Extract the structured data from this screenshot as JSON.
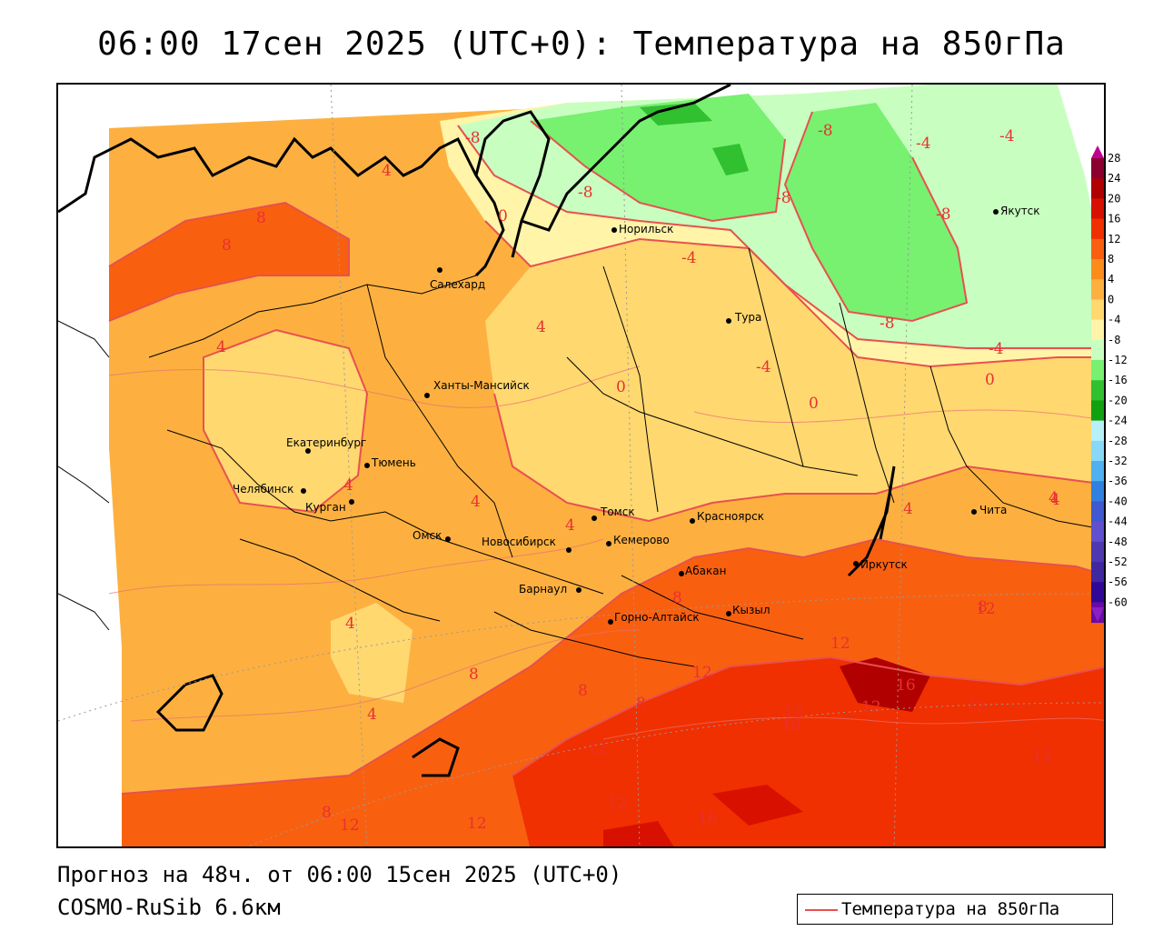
{
  "title": "06:00 17сен 2025 (UTC+0): Температура на 850гПа",
  "footer": {
    "forecast": "Прогноз на 48ч. от 06:00 15сен 2025 (UTC+0)",
    "model": "COSMO-RuSib 6.6км"
  },
  "legend": {
    "label": "Температура на 850гПа",
    "line_color": "#e85050"
  },
  "colorbar": {
    "ticks": [
      "28",
      "24",
      "20",
      "16",
      "12",
      "8",
      "4",
      "0",
      "-4",
      "-8",
      "-12",
      "-16",
      "-20",
      "-24",
      "-28",
      "-32",
      "-36",
      "-40",
      "-44",
      "-48",
      "-52",
      "-56",
      "-60"
    ],
    "colors": [
      "#8b0030",
      "#b00000",
      "#d81000",
      "#f03000",
      "#f86010",
      "#fb8c1c",
      "#fdb040",
      "#ffd870",
      "#fff4a8",
      "#c8ffc0",
      "#78f070",
      "#30c030",
      "#10a010",
      "#b8f0f8",
      "#88d8f8",
      "#50b0f0",
      "#3080e0",
      "#4058d0",
      "#6050d0",
      "#5038b0",
      "#4028a0",
      "#300898",
      "#6a0aa8"
    ]
  },
  "cities": [
    {
      "name": "Норильск"
    },
    {
      "name": "Якутск"
    },
    {
      "name": "Салехард"
    },
    {
      "name": "Тура"
    },
    {
      "name": "Ханты-Мансийск"
    },
    {
      "name": "Екатеринбург"
    },
    {
      "name": "Тюмень"
    },
    {
      "name": "Челябинск"
    },
    {
      "name": "Курган"
    },
    {
      "name": "Омск"
    },
    {
      "name": "Новосибирск"
    },
    {
      "name": "Томск"
    },
    {
      "name": "Кемерово"
    },
    {
      "name": "Красноярск"
    },
    {
      "name": "Барнаул"
    },
    {
      "name": "Абакан"
    },
    {
      "name": "Горно-Алтайск"
    },
    {
      "name": "Кызыл"
    },
    {
      "name": "Иркутск"
    },
    {
      "name": "Чита"
    }
  ],
  "contour_labels": [
    "-8",
    "-8",
    "-4",
    "-8",
    "-8",
    "-8",
    "-4",
    "-4",
    "-8",
    "-4",
    "0",
    "4",
    "0",
    "8",
    "8",
    "-4",
    "0",
    "4",
    "0",
    "4",
    "4",
    "4",
    "4",
    "4",
    "4",
    "4",
    "4",
    "8",
    "8",
    "8",
    "8",
    "12",
    "12",
    "16",
    "12",
    "16",
    "12",
    "12",
    "12",
    "12",
    "12",
    "16",
    "12",
    "8",
    "12",
    "12",
    "4",
    "8"
  ]
}
